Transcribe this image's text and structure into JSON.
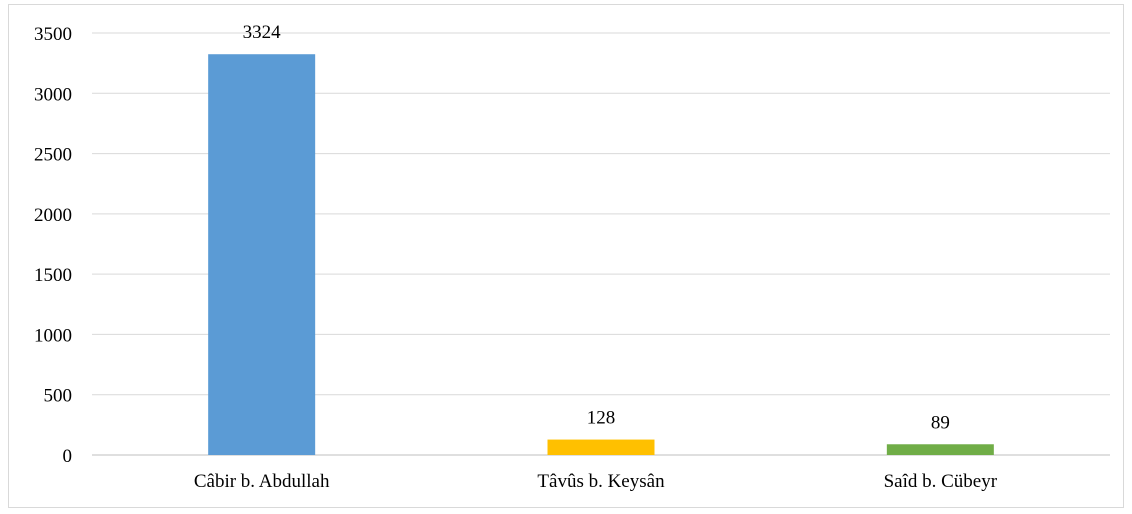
{
  "chart_data": {
    "type": "bar",
    "title": "",
    "xlabel": "",
    "ylabel": "",
    "categories": [
      "Câbir b. Abdullah",
      "Tâvûs b. Keysân",
      "Saîd b. Cübeyr"
    ],
    "values": [
      3324,
      128,
      89
    ],
    "data_labels": [
      "3324",
      "128",
      "89"
    ],
    "colors": [
      "#5b9bd5",
      "#ffc000",
      "#70ad47"
    ],
    "ylim": [
      0,
      3500
    ],
    "yticks": [
      0,
      500,
      1000,
      1500,
      2000,
      2500,
      3000,
      3500
    ],
    "ytick_labels": [
      "0",
      "500",
      "1000",
      "1500",
      "2000",
      "2500",
      "3000",
      "3500"
    ],
    "grid": true,
    "legend": "none"
  }
}
